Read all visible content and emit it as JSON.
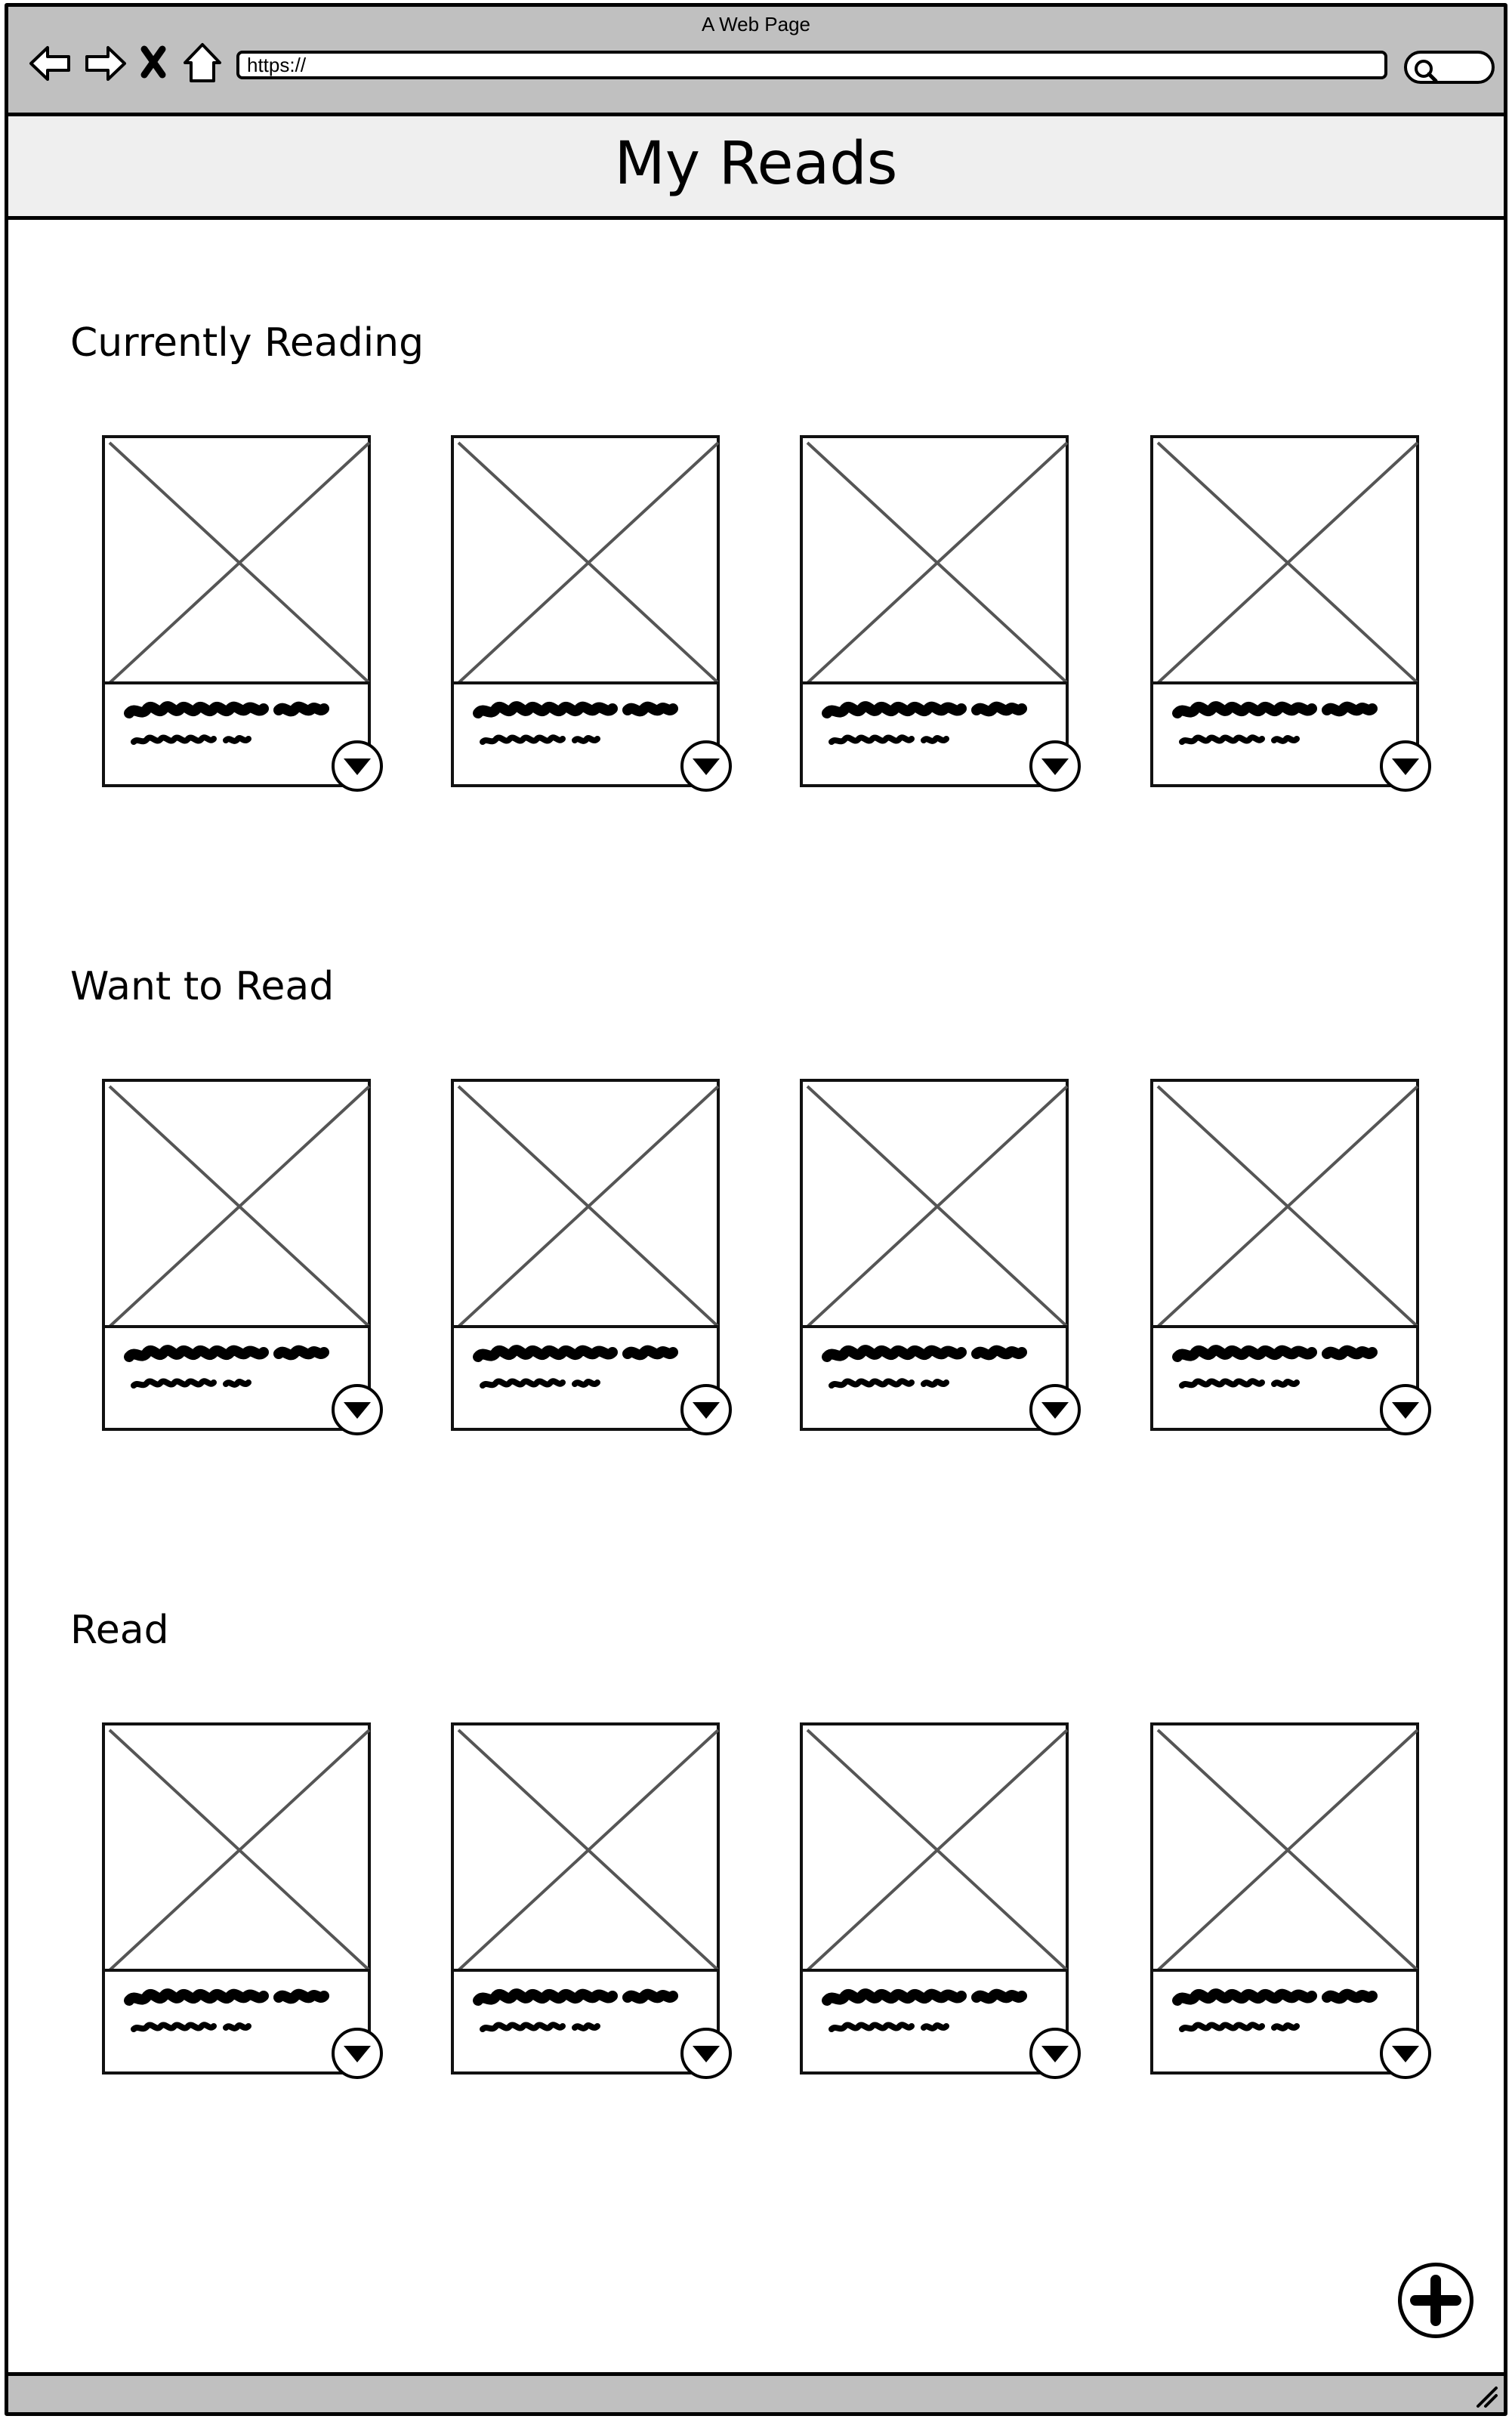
{
  "browser": {
    "window_title": "A Web Page",
    "url_value": "https://"
  },
  "app": {
    "title": "My Reads"
  },
  "shelves": [
    {
      "title": "Currently Reading",
      "book_count": 4
    },
    {
      "title": "Want to Read",
      "book_count": 4
    },
    {
      "title": "Read",
      "book_count": 4
    }
  ],
  "icons": {
    "back": "back-arrow-icon",
    "forward": "forward-arrow-icon",
    "stop": "close-icon",
    "home": "home-icon",
    "search": "search-icon",
    "shelf_changer": "triangle-down-icon",
    "add": "plus-icon",
    "cover_placeholder": "image-placeholder-icon"
  }
}
